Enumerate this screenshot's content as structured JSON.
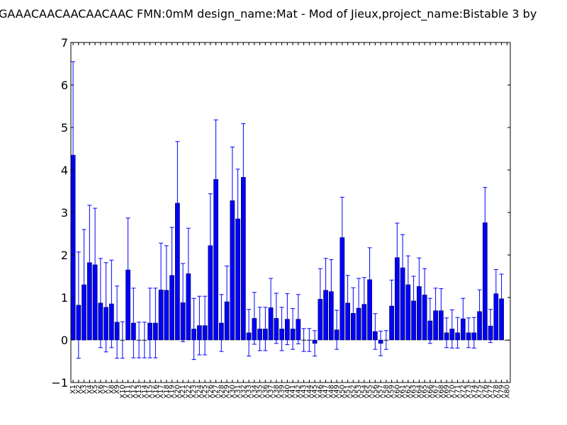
{
  "chart_data": {
    "type": "bar",
    "title": "GAAACAACAACAACAAC  FMN:0mM  design_name:Mat - Mod of Jieux,project_name:Bistable 3 by",
    "xlabel": "",
    "ylabel": "",
    "ylim": [
      -1,
      7
    ],
    "yticks": [
      -1,
      0,
      1,
      2,
      3,
      4,
      5,
      6,
      7
    ],
    "ytick_labels": [
      "−1",
      "0",
      "1",
      "2",
      "3",
      "4",
      "5",
      "6",
      "7"
    ],
    "grid": false,
    "bar_color": "#0000ff",
    "error_color": "#0000ff",
    "categories": [
      "X1",
      "X2",
      "X3",
      "X4",
      "X5",
      "X6",
      "X7",
      "X8",
      "X9",
      "X10",
      "X11",
      "X12",
      "X13",
      "X14",
      "X15",
      "X16",
      "X17",
      "X18",
      "X19",
      "X20",
      "X21",
      "X22",
      "X23",
      "X24",
      "X25",
      "X26",
      "X27",
      "X28",
      "X29",
      "X30",
      "X31",
      "X32",
      "X33",
      "X34",
      "X35",
      "X36",
      "X37",
      "X38",
      "X39",
      "X40",
      "X41",
      "X42",
      "X43",
      "X44",
      "X45",
      "X46",
      "X47",
      "X48",
      "X49",
      "X50",
      "X51",
      "X52",
      "X53",
      "X54",
      "X55",
      "X56",
      "X57",
      "X58",
      "X59",
      "X60",
      "X61",
      "X62",
      "X63",
      "X64",
      "X65",
      "X66",
      "X67",
      "X68",
      "X69",
      "X70",
      "X71",
      "X72",
      "X73",
      "X74",
      "X75",
      "X76",
      "X77",
      "X78",
      "X79",
      "X80"
    ],
    "values": [
      4.35,
      0.82,
      1.3,
      1.82,
      1.77,
      0.87,
      0.77,
      0.85,
      0.42,
      0.0,
      1.65,
      0.4,
      0.0,
      0.0,
      0.4,
      0.4,
      1.18,
      1.17,
      1.52,
      3.22,
      0.88,
      1.56,
      0.26,
      0.34,
      0.34,
      2.22,
      3.78,
      0.4,
      0.9,
      3.28,
      2.85,
      3.83,
      0.17,
      0.51,
      0.26,
      0.26,
      0.76,
      0.51,
      0.26,
      0.49,
      0.26,
      0.49,
      0.0,
      0.0,
      -0.08,
      0.96,
      1.17,
      1.14,
      0.24,
      2.41,
      0.87,
      0.63,
      0.75,
      0.84,
      1.42,
      0.2,
      -0.08,
      0.0,
      0.8,
      1.94,
      1.7,
      1.3,
      0.92,
      1.26,
      1.06,
      0.45,
      0.69,
      0.69,
      0.17,
      0.26,
      0.17,
      0.5,
      0.17,
      0.17,
      0.67,
      2.76,
      0.33,
      1.09,
      0.97,
      0.0
    ],
    "errors": [
      2.2,
      1.25,
      1.3,
      1.35,
      1.33,
      1.05,
      1.05,
      1.03,
      0.85,
      0.43,
      1.22,
      0.82,
      0.42,
      0.42,
      0.82,
      0.82,
      1.1,
      1.05,
      1.13,
      1.45,
      0.92,
      1.07,
      0.72,
      0.69,
      0.69,
      1.22,
      1.4,
      0.67,
      0.84,
      1.26,
      1.17,
      1.26,
      0.55,
      0.61,
      0.51,
      0.51,
      0.69,
      0.59,
      0.51,
      0.6,
      0.48,
      0.58,
      0.27,
      0.27,
      0.3,
      0.72,
      0.75,
      0.75,
      0.46,
      0.95,
      0.65,
      0.6,
      0.7,
      0.63,
      0.75,
      0.42,
      0.29,
      0.22,
      0.61,
      0.81,
      0.78,
      0.68,
      0.58,
      0.67,
      0.62,
      0.53,
      0.53,
      0.52,
      0.35,
      0.45,
      0.36,
      0.48,
      0.35,
      0.36,
      0.51,
      0.83,
      0.39,
      0.57,
      0.58,
      0.0
    ]
  }
}
